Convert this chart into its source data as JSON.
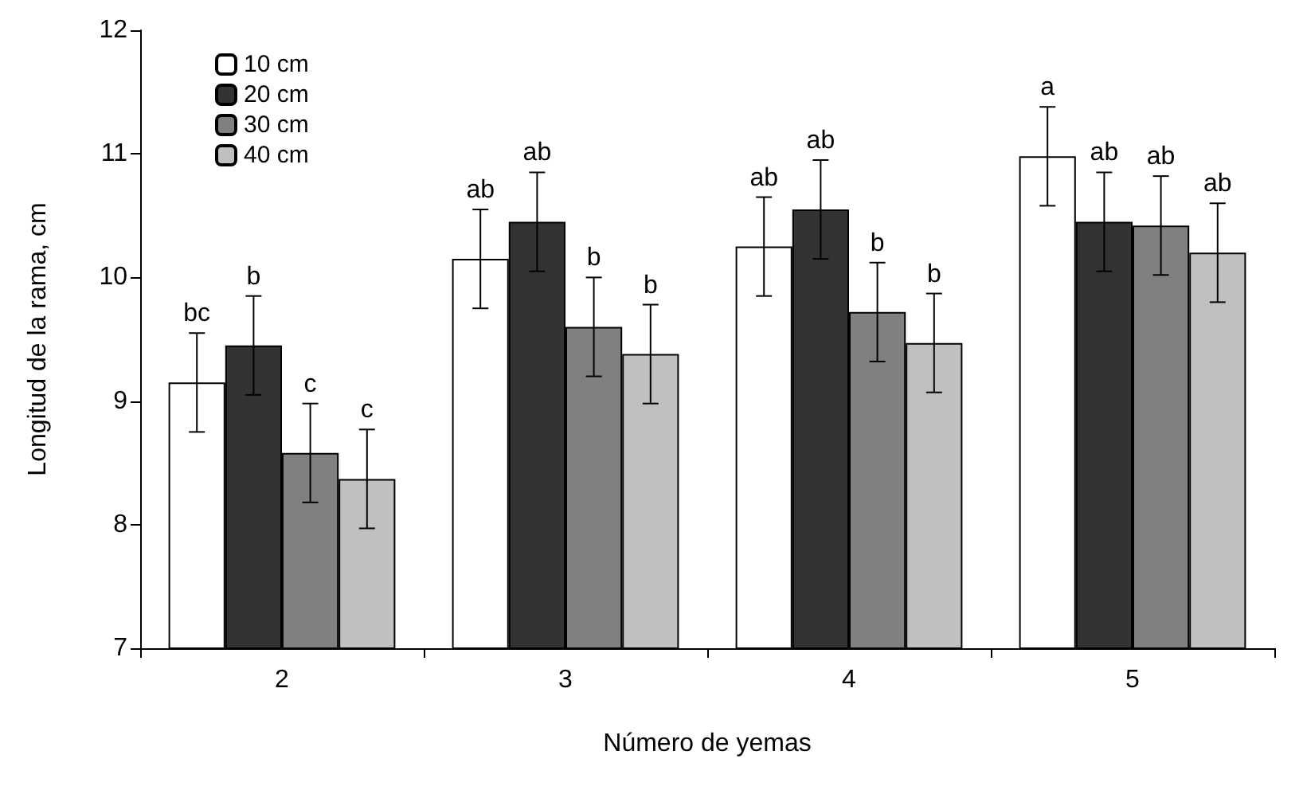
{
  "chart_data": {
    "type": "bar",
    "xlabel": "Número de yemas",
    "ylabel": "Longitud de la rama, cm",
    "categories": [
      "2",
      "3",
      "4",
      "5"
    ],
    "series": [
      {
        "name": "10 cm",
        "color": "#ffffff",
        "values": [
          9.15,
          10.15,
          10.25,
          10.98
        ],
        "errors": [
          0.4,
          0.4,
          0.4,
          0.4
        ],
        "value_labels": [
          "bc",
          "ab",
          "ab",
          "a"
        ]
      },
      {
        "name": "20 cm",
        "color": "#333333",
        "values": [
          9.45,
          10.45,
          10.55,
          10.45
        ],
        "errors": [
          0.4,
          0.4,
          0.4,
          0.4
        ],
        "value_labels": [
          "b",
          "ab",
          "ab",
          "ab"
        ]
      },
      {
        "name": "30 cm",
        "color": "#808080",
        "values": [
          8.58,
          9.6,
          9.72,
          10.42
        ],
        "errors": [
          0.4,
          0.4,
          0.4,
          0.4
        ],
        "value_labels": [
          "c",
          "b",
          "b",
          "ab"
        ]
      },
      {
        "name": "40 cm",
        "color": "#c0c0c0",
        "values": [
          8.37,
          9.38,
          9.47,
          10.2
        ],
        "errors": [
          0.4,
          0.4,
          0.4,
          0.4
        ],
        "value_labels": [
          "c",
          "b",
          "b",
          "ab"
        ]
      }
    ],
    "ylim": [
      7,
      12
    ],
    "yticks": [
      7,
      8,
      9,
      10,
      11,
      12
    ],
    "grid": false,
    "legend": "top left"
  }
}
